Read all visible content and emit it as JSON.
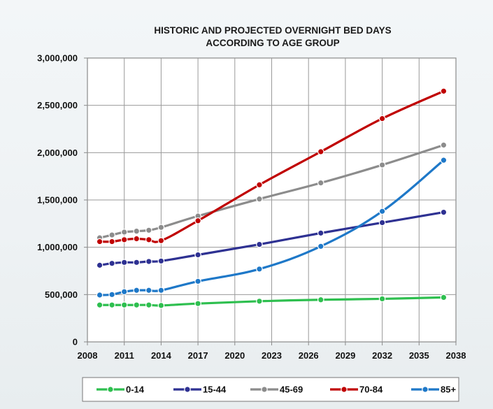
{
  "chart_data": {
    "type": "line",
    "title": "HISTORIC AND PROJECTED OVERNIGHT BED DAYS",
    "subtitle": "ACCORDING TO AGE GROUP",
    "xlabel": "",
    "ylabel": "",
    "xlim": [
      2008,
      2038
    ],
    "ylim": [
      0,
      3000000
    ],
    "xticks": [
      2008,
      2011,
      2014,
      2017,
      2020,
      2023,
      2026,
      2029,
      2032,
      2035,
      2038
    ],
    "yticks": [
      0,
      500000,
      1000000,
      1500000,
      2000000,
      2500000,
      3000000
    ],
    "ytick_labels": [
      "0",
      "500,000",
      "1,000,000",
      "1,500,000",
      "2,000,000",
      "2,500,000",
      "3,000,000"
    ],
    "grid": true,
    "legend_position": "bottom",
    "series": [
      {
        "name": "0-14",
        "color": "#2ebf4f",
        "x": [
          2009,
          2010,
          2011,
          2012,
          2013,
          2014,
          2017,
          2022,
          2027,
          2032,
          2037
        ],
        "y": [
          390000,
          390000,
          390000,
          390000,
          390000,
          385000,
          405000,
          430000,
          445000,
          455000,
          470000
        ]
      },
      {
        "name": "15-44",
        "color": "#2e3192",
        "x": [
          2009,
          2010,
          2011,
          2012,
          2013,
          2014,
          2017,
          2022,
          2027,
          2032,
          2037
        ],
        "y": [
          810000,
          830000,
          840000,
          840000,
          850000,
          855000,
          920000,
          1030000,
          1150000,
          1260000,
          1370000
        ]
      },
      {
        "name": "45-69",
        "color": "#8c8c8c",
        "x": [
          2009,
          2010,
          2011,
          2012,
          2013,
          2014,
          2017,
          2022,
          2027,
          2032,
          2037
        ],
        "y": [
          1100000,
          1130000,
          1160000,
          1170000,
          1180000,
          1210000,
          1330000,
          1510000,
          1680000,
          1870000,
          2080000
        ]
      },
      {
        "name": "70-84",
        "color": "#c00000",
        "x": [
          2009,
          2010,
          2011,
          2012,
          2013,
          2014,
          2017,
          2022,
          2027,
          2032,
          2037
        ],
        "y": [
          1060000,
          1060000,
          1080000,
          1090000,
          1080000,
          1070000,
          1280000,
          1660000,
          2010000,
          2360000,
          2650000
        ]
      },
      {
        "name": "85+",
        "color": "#1e78c8",
        "x": [
          2009,
          2010,
          2011,
          2012,
          2013,
          2014,
          2017,
          2022,
          2027,
          2032,
          2037
        ],
        "y": [
          495000,
          500000,
          530000,
          545000,
          545000,
          545000,
          640000,
          770000,
          1010000,
          1380000,
          1920000
        ]
      }
    ]
  }
}
